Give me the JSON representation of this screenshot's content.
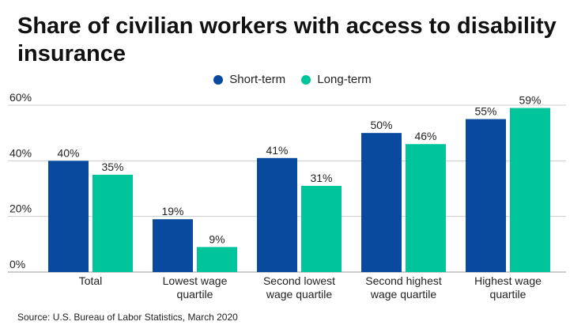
{
  "title": "Share of civilian workers with access to disability insurance",
  "source": "Source: U.S. Bureau of Labor Statistics, March 2020",
  "chart_data": {
    "type": "bar",
    "title": "Share of civilian workers with access to disability insurance",
    "categories": [
      [
        "Total"
      ],
      [
        "Lowest wage",
        "quartile"
      ],
      [
        "Second lowest",
        "wage quartile"
      ],
      [
        "Second highest",
        "wage quartile"
      ],
      [
        "Highest wage",
        "quartile"
      ]
    ],
    "series": [
      {
        "name": "Short-term",
        "color": "#0a4a9e",
        "values": [
          40,
          19,
          41,
          50,
          55
        ]
      },
      {
        "name": "Long-term",
        "color": "#00c49a",
        "values": [
          35,
          9,
          31,
          46,
          59
        ]
      }
    ],
    "ylim": [
      0,
      60
    ],
    "yticks": [
      0,
      20,
      40,
      60
    ],
    "ytick_labels": [
      "0%",
      "20%",
      "40%",
      "60%"
    ],
    "grid": true,
    "legend": "top-center",
    "xlabel": "",
    "ylabel": ""
  }
}
